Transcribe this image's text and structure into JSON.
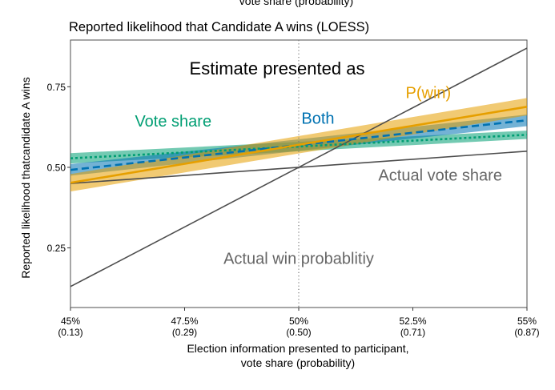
{
  "chart_data": {
    "type": "line",
    "top_clipped_text": "vote share (probability)",
    "title": "Reported likelihood that Candidate A wins (LOESS)",
    "inner_title": "Estimate presented as",
    "xlabel_line1": "Election information presented to participant,",
    "xlabel_line2": "vote share (probability)",
    "ylabel": "Reported likelihood thatcandidate A wins",
    "xlim": [
      45,
      55
    ],
    "ylim": [
      0.065,
      0.895
    ],
    "x_ticks": [
      {
        "value": 45,
        "label": "45%",
        "sub": "(0.13)"
      },
      {
        "value": 47.5,
        "label": "47.5%",
        "sub": "(0.29)"
      },
      {
        "value": 50,
        "label": "50%",
        "sub": "(0.50)"
      },
      {
        "value": 52.5,
        "label": "52.5%",
        "sub": "(0.71)"
      },
      {
        "value": 55,
        "label": "55%",
        "sub": "(0.87)"
      }
    ],
    "y_ticks": [
      {
        "value": 0.25,
        "label": "0.25"
      },
      {
        "value": 0.5,
        "label": "0.50"
      },
      {
        "value": 0.75,
        "label": "0.75"
      }
    ],
    "vline": 50,
    "colors": {
      "pwin": "#E69F00",
      "both": "#0072B2",
      "vote_share": "#009E73",
      "reference": "#4d4d4d",
      "ref_label": "#666666",
      "axis": "#333333",
      "vline": "#7a7a7a"
    },
    "series": [
      {
        "name": "Vote share",
        "key": "vote_share",
        "style": "dotted",
        "x": [
          45,
          55
        ],
        "y": [
          0.528,
          0.601
        ],
        "lower": [
          0.512,
          0.588
        ],
        "upper": [
          0.544,
          0.614
        ]
      },
      {
        "name": "Both",
        "key": "both",
        "style": "dashed",
        "x": [
          45,
          55
        ],
        "y": [
          0.492,
          0.646
        ],
        "lower": [
          0.474,
          0.628
        ],
        "upper": [
          0.51,
          0.664
        ]
      },
      {
        "name": "P(win)",
        "key": "pwin",
        "style": "solid",
        "x": [
          45,
          55
        ],
        "y": [
          0.452,
          0.688
        ],
        "lower": [
          0.425,
          0.661
        ],
        "upper": [
          0.479,
          0.715
        ]
      }
    ],
    "references": [
      {
        "name": "Actual vote share",
        "x": [
          45,
          55
        ],
        "y": [
          0.45,
          0.55
        ]
      },
      {
        "name": "Actual win probablitiy",
        "x": [
          45,
          55
        ],
        "y": [
          0.13,
          0.87
        ]
      }
    ],
    "series_labels": [
      {
        "text": "Vote share",
        "key": "vote_share",
        "x": 47.25,
        "y": 0.627
      },
      {
        "text": "Both",
        "key": "both",
        "x": 50.42,
        "y": 0.635
      },
      {
        "text": "P(win)",
        "key": "pwin",
        "x": 52.84,
        "y": 0.715
      }
    ],
    "reference_labels": [
      {
        "text": "Actual vote share",
        "x": 53.1,
        "y": 0.459
      },
      {
        "text": "Actual win probablitiy",
        "x": 50.0,
        "y": 0.2
      }
    ]
  }
}
